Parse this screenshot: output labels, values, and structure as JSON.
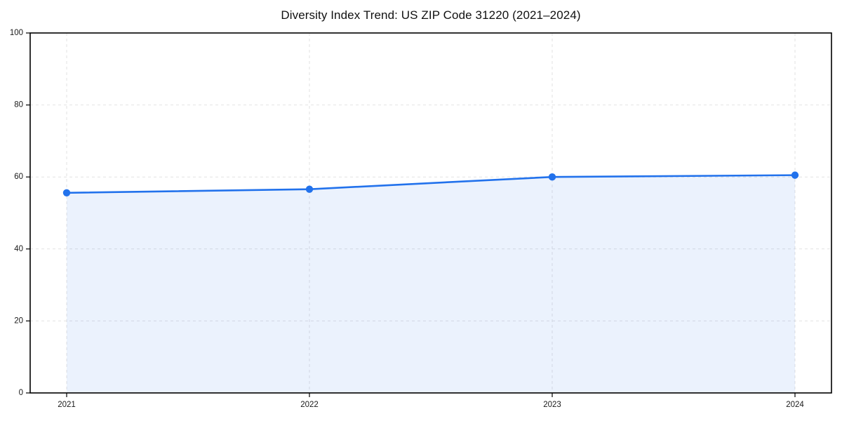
{
  "chart_data": {
    "type": "area",
    "title": "Diversity Index Trend: US ZIP Code 31220 (2021–2024)",
    "x": [
      2021,
      2022,
      2023,
      2024
    ],
    "xticklabels": [
      "2021",
      "2022",
      "2023",
      "2024"
    ],
    "series": [
      {
        "name": "Diversity Index",
        "values": [
          55.6,
          56.6,
          60.0,
          60.5
        ]
      }
    ],
    "xlabel": "",
    "ylabel": "",
    "ylim": [
      0,
      100
    ],
    "yticks": [
      0,
      20,
      40,
      60,
      80,
      100
    ],
    "grid": true,
    "grid_style": "dashed",
    "legend_position": "none",
    "marker": "circle",
    "colors": {
      "line": "#2272ec",
      "marker": "#2272ec",
      "fill": "rgba(34,114,236,0.09)",
      "grid": "#e2e2e2",
      "axis": "#000000",
      "text": "#1a1a1a",
      "background": "#ffffff"
    }
  }
}
